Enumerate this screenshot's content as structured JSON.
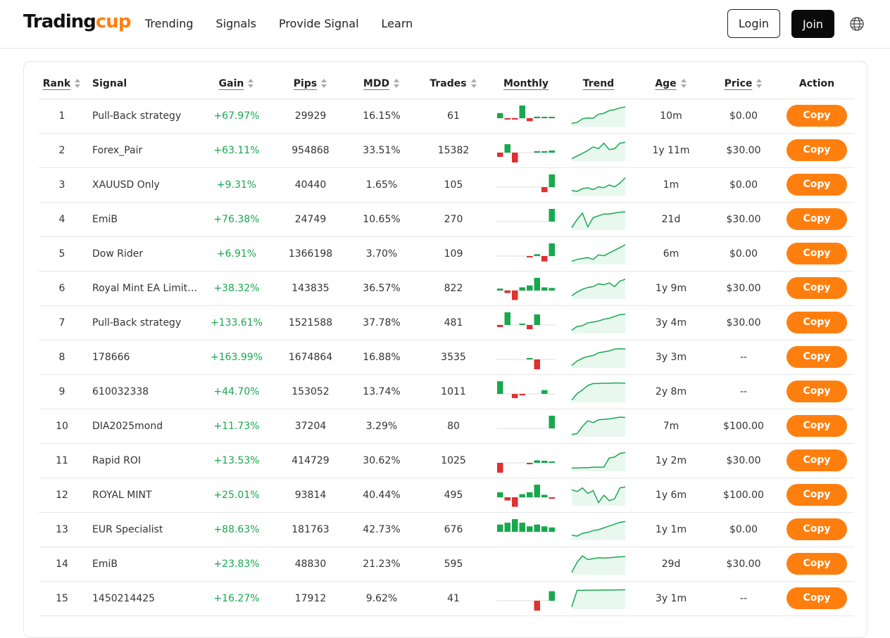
{
  "brand": {
    "part1": "Trading",
    "part2": "cup"
  },
  "nav": [
    "Trending",
    "Signals",
    "Provide Signal",
    "Learn"
  ],
  "auth": {
    "login": "Login",
    "join": "Join"
  },
  "columns": {
    "rank": "Rank",
    "signal": "Signal",
    "gain": "Gain",
    "pips": "Pips",
    "mdd": "MDD",
    "trades": "Trades",
    "monthly": "Monthly",
    "trend": "Trend",
    "age": "Age",
    "price": "Price",
    "action": "Action"
  },
  "copy_label": "Copy",
  "colors": {
    "accent": "#ff7f0e",
    "positive": "#18a84e",
    "negative": "#e03030"
  },
  "rows": [
    {
      "rank": "1",
      "signal": "Pull-Back strategy",
      "gain": "+67.97%",
      "pips": "29929",
      "mdd": "16.15%",
      "trades": "61",
      "age": "10m",
      "price": "$0.00",
      "monthly": [
        2,
        -0.5,
        -0.3,
        5,
        -1.2,
        0.6,
        0.4,
        0.1
      ],
      "trend": [
        0.1,
        0.15,
        0.35,
        0.4,
        0.38,
        0.6,
        0.65,
        0.8,
        0.85,
        0.95,
        1
      ]
    },
    {
      "rank": "2",
      "signal": "Forex_Pair",
      "gain": "+63.11%",
      "pips": "954868",
      "mdd": "33.51%",
      "trades": "15382",
      "age": "1y 11m",
      "price": "$30.00",
      "monthly": [
        -1,
        2,
        -3,
        0,
        0,
        0.2,
        0.3,
        0.5
      ],
      "trend": [
        0.05,
        0.2,
        0.35,
        0.5,
        0.7,
        0.6,
        0.9,
        0.55,
        0.6,
        0.9,
        0.95
      ]
    },
    {
      "rank": "3",
      "signal": "XAUUSD Only",
      "gain": "+9.31%",
      "pips": "40440",
      "mdd": "1.65%",
      "trades": "105",
      "age": "1m",
      "price": "$0.00",
      "monthly": [
        0,
        0,
        0,
        0,
        0,
        0,
        -1.2,
        3
      ],
      "trend": [
        0.2,
        0.15,
        0.3,
        0.35,
        0.25,
        0.4,
        0.35,
        0.5,
        0.4,
        0.6,
        0.9
      ]
    },
    {
      "rank": "4",
      "signal": "EmiB",
      "gain": "+76.38%",
      "pips": "24749",
      "mdd": "10.65%",
      "trades": "270",
      "age": "21d",
      "price": "$30.00",
      "monthly": [
        0,
        0,
        0,
        0,
        0,
        0,
        0,
        5
      ],
      "trend": [
        0.05,
        0.5,
        0.85,
        0.1,
        0.6,
        0.7,
        0.8,
        0.8,
        0.85,
        0.9,
        0.92
      ]
    },
    {
      "rank": "5",
      "signal": "Dow Rider",
      "gain": "+6.91%",
      "pips": "1366198",
      "mdd": "3.70%",
      "trades": "109",
      "age": "6m",
      "price": "$0.00",
      "monthly": [
        0,
        0,
        0,
        0,
        -0.3,
        0.5,
        -1.5,
        3.5
      ],
      "trend": [
        0.1,
        0.2,
        0.25,
        0.3,
        0.2,
        0.45,
        0.4,
        0.55,
        0.7,
        0.85,
        1
      ]
    },
    {
      "rank": "6",
      "signal": "Royal Mint EA Limitless",
      "gain": "+38.32%",
      "pips": "143835",
      "mdd": "36.57%",
      "trades": "822",
      "age": "1y 9m",
      "price": "$30.00",
      "monthly": [
        0.3,
        -0.4,
        -1.5,
        0.5,
        0.8,
        2,
        0.5,
        0.4
      ],
      "trend": [
        0.1,
        0.3,
        0.45,
        0.55,
        0.6,
        0.75,
        0.7,
        0.8,
        0.6,
        0.9,
        1
      ]
    },
    {
      "rank": "7",
      "signal": "Pull-Back strategy",
      "gain": "+133.61%",
      "pips": "1521588",
      "mdd": "37.78%",
      "trades": "481",
      "age": "3y 4m",
      "price": "$30.00",
      "monthly": [
        -0.5,
        3,
        0,
        0.2,
        -1,
        2.5,
        0,
        0
      ],
      "trend": [
        0.1,
        0.3,
        0.35,
        0.5,
        0.55,
        0.6,
        0.7,
        0.75,
        0.85,
        0.95,
        0.97
      ]
    },
    {
      "rank": "8",
      "signal": "178666",
      "gain": "+163.99%",
      "pips": "1674864",
      "mdd": "16.88%",
      "trades": "3535",
      "age": "3y 3m",
      "price": "--",
      "monthly": [
        0,
        0,
        0,
        0,
        0.4,
        -4,
        0,
        0
      ],
      "trend": [
        0.05,
        0.3,
        0.45,
        0.55,
        0.6,
        0.75,
        0.8,
        0.85,
        0.95,
        0.97,
        0.95
      ]
    },
    {
      "rank": "9",
      "signal": "610032338",
      "gain": "+44.70%",
      "pips": "153052",
      "mdd": "13.74%",
      "trades": "1011",
      "age": "2y 8m",
      "price": "--",
      "monthly": [
        3,
        0,
        -1,
        -0.3,
        0,
        0,
        0.9,
        0
      ],
      "trend": [
        0.05,
        0.4,
        0.6,
        0.85,
        0.95,
        0.95,
        0.97,
        0.97,
        0.98,
        0.98,
        0.97
      ]
    },
    {
      "rank": "10",
      "signal": "DIA2025mond",
      "gain": "+11.73%",
      "pips": "37204",
      "mdd": "3.29%",
      "trades": "80",
      "age": "7m",
      "price": "$100.00",
      "monthly": [
        0,
        0,
        0,
        0,
        0,
        0,
        0,
        5
      ],
      "trend": [
        0.05,
        0.1,
        0.5,
        0.8,
        0.7,
        0.85,
        0.88,
        0.9,
        0.95,
        1,
        0.98
      ]
    },
    {
      "rank": "11",
      "signal": "Rapid ROI",
      "gain": "+13.53%",
      "pips": "414729",
      "mdd": "30.62%",
      "trades": "1025",
      "age": "1y 2m",
      "price": "$30.00",
      "monthly": [
        -3,
        0,
        0,
        0,
        -0.2,
        0.6,
        0.5,
        0.3
      ],
      "trend": [
        0.1,
        0.1,
        0.12,
        0.12,
        0.15,
        0.15,
        0.15,
        0.65,
        0.7,
        0.9,
        0.95
      ]
    },
    {
      "rank": "12",
      "signal": "ROYAL MINT",
      "gain": "+25.01%",
      "pips": "93814",
      "mdd": "40.44%",
      "trades": "495",
      "age": "1y 6m",
      "price": "$100.00",
      "monthly": [
        0.8,
        -0.5,
        -1.5,
        0.5,
        0.8,
        2,
        0.4,
        -0.2
      ],
      "trend": [
        0.8,
        0.7,
        0.9,
        0.6,
        0.75,
        0.1,
        0.5,
        0.2,
        0.3,
        0.9,
        0.95
      ]
    },
    {
      "rank": "13",
      "signal": "EUR Specialist",
      "gain": "+88.63%",
      "pips": "181763",
      "mdd": "42.73%",
      "trades": "676",
      "age": "1y 1m",
      "price": "$0.00",
      "monthly": [
        2,
        2.5,
        3.5,
        2.5,
        1.5,
        2,
        1.5,
        1.2
      ],
      "trend": [
        0.2,
        0.15,
        0.3,
        0.35,
        0.45,
        0.5,
        0.6,
        0.7,
        0.8,
        0.9,
        0.95
      ]
    },
    {
      "rank": "14",
      "signal": "EmiB",
      "gain": "+23.83%",
      "pips": "48830",
      "mdd": "21.23%",
      "trades": "595",
      "age": "29d",
      "price": "$30.00",
      "monthly": [
        0,
        0,
        0,
        0,
        0,
        0,
        0,
        0
      ],
      "trend": [
        0.05,
        0.6,
        0.95,
        0.75,
        0.8,
        0.85,
        0.83,
        0.85,
        0.88,
        0.9,
        0.92
      ]
    },
    {
      "rank": "15",
      "signal": "1450214425",
      "gain": "+16.27%",
      "pips": "17912",
      "mdd": "9.62%",
      "trades": "41",
      "age": "3y 1m",
      "price": "--",
      "monthly": [
        0,
        0,
        0,
        0,
        0,
        -2,
        0,
        1.5
      ],
      "trend": [
        0.05,
        0.95,
        0.95,
        0.96,
        0.96,
        0.96,
        0.97,
        0.97,
        0.97,
        0.98,
        0.98
      ]
    }
  ]
}
